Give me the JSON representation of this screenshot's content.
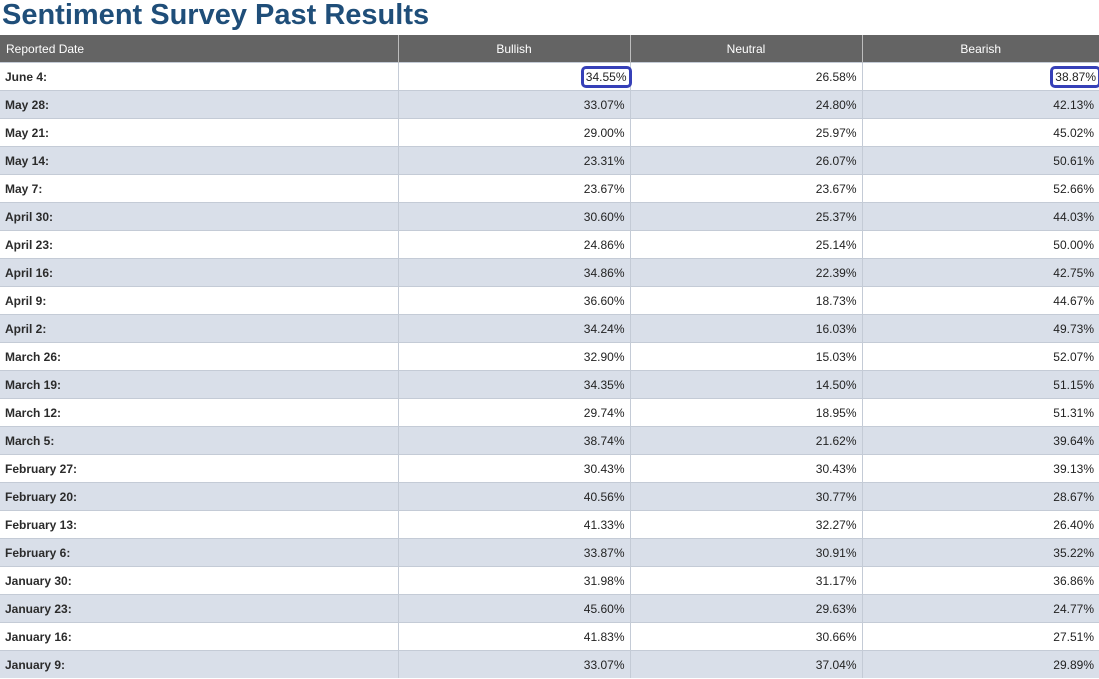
{
  "page": {
    "title": "Sentiment Survey Past Results"
  },
  "table": {
    "headers": {
      "date": "Reported Date",
      "bullish": "Bullish",
      "neutral": "Neutral",
      "bearish": "Bearish"
    },
    "rows": [
      {
        "date": "June 4:",
        "bullish": "34.55%",
        "neutral": "26.58%",
        "bearish": "38.87%",
        "highlight_bullish": true,
        "highlight_bearish": true
      },
      {
        "date": "May 28:",
        "bullish": "33.07%",
        "neutral": "24.80%",
        "bearish": "42.13%"
      },
      {
        "date": "May 21:",
        "bullish": "29.00%",
        "neutral": "25.97%",
        "bearish": "45.02%"
      },
      {
        "date": "May 14:",
        "bullish": "23.31%",
        "neutral": "26.07%",
        "bearish": "50.61%"
      },
      {
        "date": "May 7:",
        "bullish": "23.67%",
        "neutral": "23.67%",
        "bearish": "52.66%"
      },
      {
        "date": "April 30:",
        "bullish": "30.60%",
        "neutral": "25.37%",
        "bearish": "44.03%"
      },
      {
        "date": "April 23:",
        "bullish": "24.86%",
        "neutral": "25.14%",
        "bearish": "50.00%"
      },
      {
        "date": "April 16:",
        "bullish": "34.86%",
        "neutral": "22.39%",
        "bearish": "42.75%"
      },
      {
        "date": "April 9:",
        "bullish": "36.60%",
        "neutral": "18.73%",
        "bearish": "44.67%"
      },
      {
        "date": "April 2:",
        "bullish": "34.24%",
        "neutral": "16.03%",
        "bearish": "49.73%"
      },
      {
        "date": "March 26:",
        "bullish": "32.90%",
        "neutral": "15.03%",
        "bearish": "52.07%"
      },
      {
        "date": "March 19:",
        "bullish": "34.35%",
        "neutral": "14.50%",
        "bearish": "51.15%"
      },
      {
        "date": "March 12:",
        "bullish": "29.74%",
        "neutral": "18.95%",
        "bearish": "51.31%"
      },
      {
        "date": "March 5:",
        "bullish": "38.74%",
        "neutral": "21.62%",
        "bearish": "39.64%"
      },
      {
        "date": "February 27:",
        "bullish": "30.43%",
        "neutral": "30.43%",
        "bearish": "39.13%"
      },
      {
        "date": "February 20:",
        "bullish": "40.56%",
        "neutral": "30.77%",
        "bearish": "28.67%"
      },
      {
        "date": "February 13:",
        "bullish": "41.33%",
        "neutral": "32.27%",
        "bearish": "26.40%"
      },
      {
        "date": "February 6:",
        "bullish": "33.87%",
        "neutral": "30.91%",
        "bearish": "35.22%"
      },
      {
        "date": "January 30:",
        "bullish": "31.98%",
        "neutral": "31.17%",
        "bearish": "36.86%"
      },
      {
        "date": "January 23:",
        "bullish": "45.60%",
        "neutral": "29.63%",
        "bearish": "24.77%"
      },
      {
        "date": "January 16:",
        "bullish": "41.83%",
        "neutral": "30.66%",
        "bearish": "27.51%"
      },
      {
        "date": "January 9:",
        "bullish": "33.07%",
        "neutral": "37.04%",
        "bearish": "29.89%"
      }
    ]
  },
  "colors": {
    "title": "#1f4e79",
    "header_bg": "#646464",
    "alt_row_bg": "#d9dfe9",
    "highlight_border": "#3640b8"
  }
}
